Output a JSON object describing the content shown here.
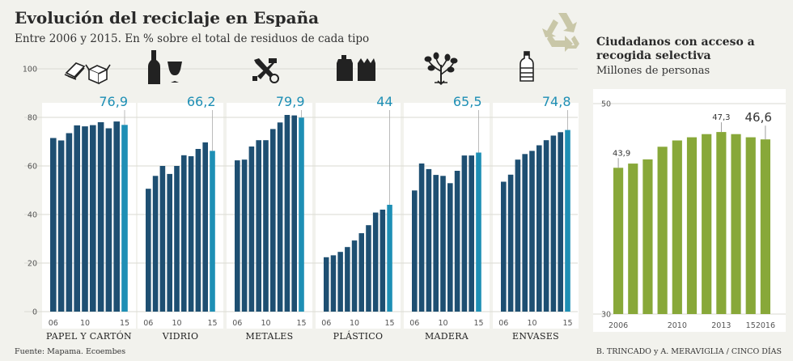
{
  "title": "Evolución del reciclaje en España",
  "subtitle": "Entre 2006 y 2015. En % sobre el total de residuos de cada tipo",
  "right_title": "Ciudadanos con acceso a recogida selectiva",
  "right_subtitle": "Millones de personas",
  "source_left": "Fuente: Mapama. Ecoembes",
  "source_right": "B. TRINCADO y A. MERAVIGLIA / CINCO DÍAS",
  "colors": {
    "bar_dark": "#1e4f72",
    "bar_last": "#1e8fb5",
    "bar_green": "#88a839",
    "background": "#f2f2ed",
    "panel": "#ffffff"
  },
  "icons": [
    "paper-cardboard-icon",
    "glass-bottle-icon",
    "tools-icon",
    "plastic-containers-icon",
    "plant-icon",
    "bottle-icon",
    "recycle-icon"
  ],
  "chart_data": [
    {
      "type": "bar",
      "title": "Evolución del reciclaje en España",
      "yticks": [
        0,
        20,
        40,
        60,
        80,
        100
      ],
      "ylim": [
        0,
        100
      ],
      "x_tick_labels": [
        "06",
        "10",
        "15"
      ],
      "panels": [
        {
          "name": "PAPEL Y CARTÓN",
          "x": [
            2006,
            2007,
            2008,
            2009,
            2010,
            2011,
            2012,
            2013,
            2014,
            2015
          ],
          "values": [
            71.5,
            70.5,
            73.5,
            76.7,
            76.3,
            76.8,
            78.0,
            75.5,
            78.3,
            76.9
          ],
          "last_label": "76,9"
        },
        {
          "name": "VIDRIO",
          "x": [
            2006,
            2007,
            2008,
            2009,
            2010,
            2011,
            2012,
            2013,
            2014,
            2015
          ],
          "values": [
            50.6,
            55.9,
            60.0,
            56.7,
            60.0,
            64.4,
            64.0,
            67.0,
            69.7,
            66.2
          ],
          "last_label": "66,2"
        },
        {
          "name": "METALES",
          "x": [
            2006,
            2007,
            2008,
            2009,
            2010,
            2011,
            2012,
            2013,
            2014,
            2015
          ],
          "values": [
            62.3,
            62.6,
            68.0,
            70.6,
            70.6,
            75.2,
            77.9,
            81.0,
            80.8,
            79.9
          ],
          "last_label": "79,9"
        },
        {
          "name": "PLÁSTICO",
          "x": [
            2006,
            2007,
            2008,
            2009,
            2010,
            2011,
            2012,
            2013,
            2014,
            2015
          ],
          "values": [
            22.4,
            23.2,
            24.6,
            26.6,
            29.3,
            32.3,
            35.6,
            40.8,
            42.0,
            44.0
          ],
          "last_label": "44"
        },
        {
          "name": "MADERA",
          "x": [
            2006,
            2007,
            2008,
            2009,
            2010,
            2011,
            2012,
            2013,
            2014,
            2015
          ],
          "values": [
            49.9,
            61.0,
            58.7,
            56.3,
            55.9,
            52.9,
            58.0,
            64.3,
            64.3,
            65.5
          ],
          "last_label": "65,5"
        },
        {
          "name": "ENVASES",
          "x": [
            2006,
            2007,
            2008,
            2009,
            2010,
            2011,
            2012,
            2013,
            2014,
            2015
          ],
          "values": [
            53.5,
            56.4,
            62.6,
            64.9,
            66.2,
            68.5,
            70.6,
            72.5,
            73.9,
            74.8
          ],
          "last_label": "74,8"
        }
      ]
    },
    {
      "type": "bar",
      "title": "Ciudadanos con acceso a recogida selectiva",
      "ylabel": "Millones de personas",
      "ylim": [
        30,
        50
      ],
      "yticks": [
        30,
        50
      ],
      "x": [
        2006,
        2007,
        2008,
        2009,
        2010,
        2011,
        2012,
        2013,
        2014,
        2015,
        2016
      ],
      "x_tick_labels": [
        "2006",
        "2010",
        "2013",
        "15",
        "2016"
      ],
      "x_tick_years": [
        2006,
        2010,
        2013,
        2015,
        2016
      ],
      "values": [
        43.9,
        44.3,
        44.7,
        45.9,
        46.5,
        46.8,
        47.1,
        47.3,
        47.1,
        46.8,
        46.6
      ],
      "annotations": [
        {
          "year": 2006,
          "label": "43,9",
          "size": "small"
        },
        {
          "year": 2013,
          "label": "47,3",
          "size": "small"
        },
        {
          "year": 2016,
          "label": "46,6",
          "size": "big"
        }
      ]
    }
  ]
}
